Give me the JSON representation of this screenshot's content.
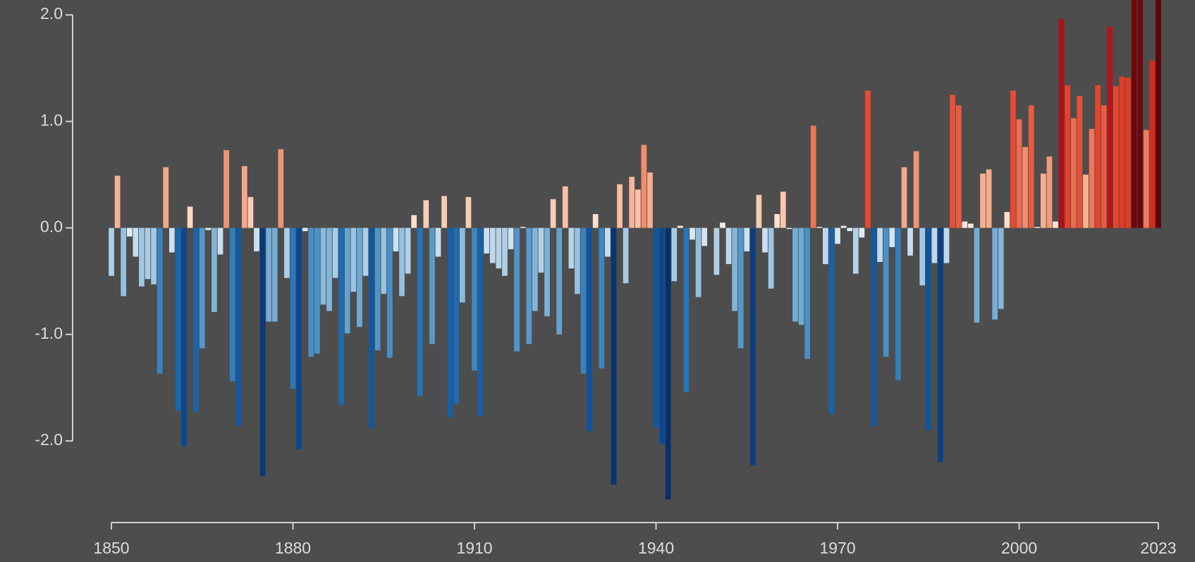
{
  "chart_data": {
    "type": "bar",
    "colormap": "RdBu_r",
    "x": [
      1850,
      1851,
      1852,
      1853,
      1854,
      1855,
      1856,
      1857,
      1858,
      1859,
      1860,
      1861,
      1862,
      1863,
      1864,
      1865,
      1866,
      1867,
      1868,
      1869,
      1870,
      1871,
      1872,
      1873,
      1874,
      1875,
      1876,
      1877,
      1878,
      1879,
      1880,
      1881,
      1882,
      1883,
      1884,
      1885,
      1886,
      1887,
      1888,
      1889,
      1890,
      1891,
      1892,
      1893,
      1894,
      1895,
      1896,
      1897,
      1898,
      1899,
      1900,
      1901,
      1902,
      1903,
      1904,
      1905,
      1906,
      1907,
      1908,
      1909,
      1910,
      1911,
      1912,
      1913,
      1914,
      1915,
      1916,
      1917,
      1918,
      1919,
      1920,
      1921,
      1922,
      1923,
      1924,
      1925,
      1926,
      1927,
      1928,
      1929,
      1930,
      1931,
      1932,
      1933,
      1934,
      1935,
      1936,
      1937,
      1938,
      1939,
      1940,
      1941,
      1942,
      1943,
      1944,
      1945,
      1946,
      1947,
      1948,
      1949,
      1950,
      1951,
      1952,
      1953,
      1954,
      1955,
      1956,
      1957,
      1958,
      1959,
      1960,
      1961,
      1962,
      1963,
      1964,
      1965,
      1966,
      1967,
      1968,
      1969,
      1970,
      1971,
      1972,
      1973,
      1974,
      1975,
      1976,
      1977,
      1978,
      1979,
      1980,
      1981,
      1982,
      1983,
      1984,
      1985,
      1986,
      1987,
      1988,
      1989,
      1990,
      1991,
      1992,
      1993,
      1994,
      1995,
      1996,
      1997,
      1998,
      1999,
      2000,
      2001,
      2002,
      2003,
      2004,
      2005,
      2006,
      2007,
      2008,
      2009,
      2010,
      2011,
      2012,
      2013,
      2014,
      2015,
      2016,
      2017,
      2018,
      2019,
      2020,
      2021,
      2022,
      2023
    ],
    "values": [
      -0.45,
      0.49,
      -0.64,
      -0.08,
      -0.27,
      -0.55,
      -0.48,
      -0.53,
      -1.37,
      0.57,
      -0.23,
      -1.72,
      -2.05,
      0.2,
      -1.73,
      -1.13,
      -0.02,
      -0.79,
      -0.25,
      0.73,
      -1.44,
      -1.86,
      0.58,
      0.29,
      -0.22,
      -2.33,
      -0.88,
      -0.88,
      0.74,
      -0.47,
      -1.51,
      -2.08,
      -0.03,
      -1.21,
      -1.18,
      -0.72,
      -0.78,
      -0.47,
      -1.66,
      -0.99,
      -0.6,
      -0.93,
      -0.45,
      -1.88,
      -1.15,
      -0.62,
      -1.22,
      -0.22,
      -0.64,
      -0.43,
      0.12,
      -1.58,
      0.26,
      -1.09,
      -0.27,
      0.3,
      -1.78,
      -1.65,
      -0.7,
      0.29,
      -1.34,
      -1.77,
      -0.24,
      -0.33,
      -0.38,
      -0.45,
      -0.2,
      -1.16,
      0.01,
      -1.09,
      -0.78,
      -0.42,
      -0.83,
      0.27,
      -1.0,
      0.39,
      -0.38,
      -0.62,
      -1.37,
      -1.91,
      0.13,
      -1.32,
      -0.27,
      -2.41,
      0.41,
      -0.52,
      0.48,
      0.36,
      0.78,
      0.52,
      -1.88,
      -2.03,
      -2.55,
      -0.5,
      0.02,
      -1.54,
      -0.11,
      -0.65,
      -0.17,
      0.0,
      -0.44,
      0.05,
      -0.34,
      -0.78,
      -1.13,
      -0.22,
      -2.23,
      0.31,
      -0.23,
      -0.57,
      0.13,
      0.34,
      -0.01,
      -0.88,
      -0.91,
      -1.23,
      0.96,
      0.01,
      -0.34,
      -1.75,
      -0.15,
      0.02,
      -0.03,
      -0.43,
      -0.09,
      1.29,
      -1.86,
      -0.32,
      -1.21,
      -0.18,
      -1.43,
      0.57,
      -0.26,
      0.72,
      -0.54,
      -1.9,
      -0.33,
      -2.2,
      -0.33,
      1.25,
      1.15,
      0.06,
      0.04,
      -0.89,
      0.51,
      0.55,
      -0.86,
      -0.76,
      0.15,
      1.29,
      1.02,
      0.76,
      1.15,
      0.01,
      0.51,
      0.67,
      0.06,
      1.96,
      1.34,
      1.03,
      1.24,
      0.5,
      0.93,
      1.34,
      1.15,
      1.89,
      1.33,
      1.42,
      1.41,
      2.3,
      2.3,
      0.92,
      1.57,
      2.4
    ],
    "xlim": [
      1850,
      2023
    ],
    "xticks": [
      1850,
      1880,
      1910,
      1940,
      1970,
      2000,
      2023
    ],
    "ylim": [
      -2.76,
      2.14
    ],
    "yticks": [
      {
        "value": 2,
        "label": "2.0"
      },
      {
        "value": 1,
        "label": "1.0"
      },
      {
        "value": 0,
        "label": "0.0"
      },
      {
        "value": -1,
        "label": "-1.0"
      },
      {
        "value": -2,
        "label": "-2.0"
      }
    ]
  }
}
